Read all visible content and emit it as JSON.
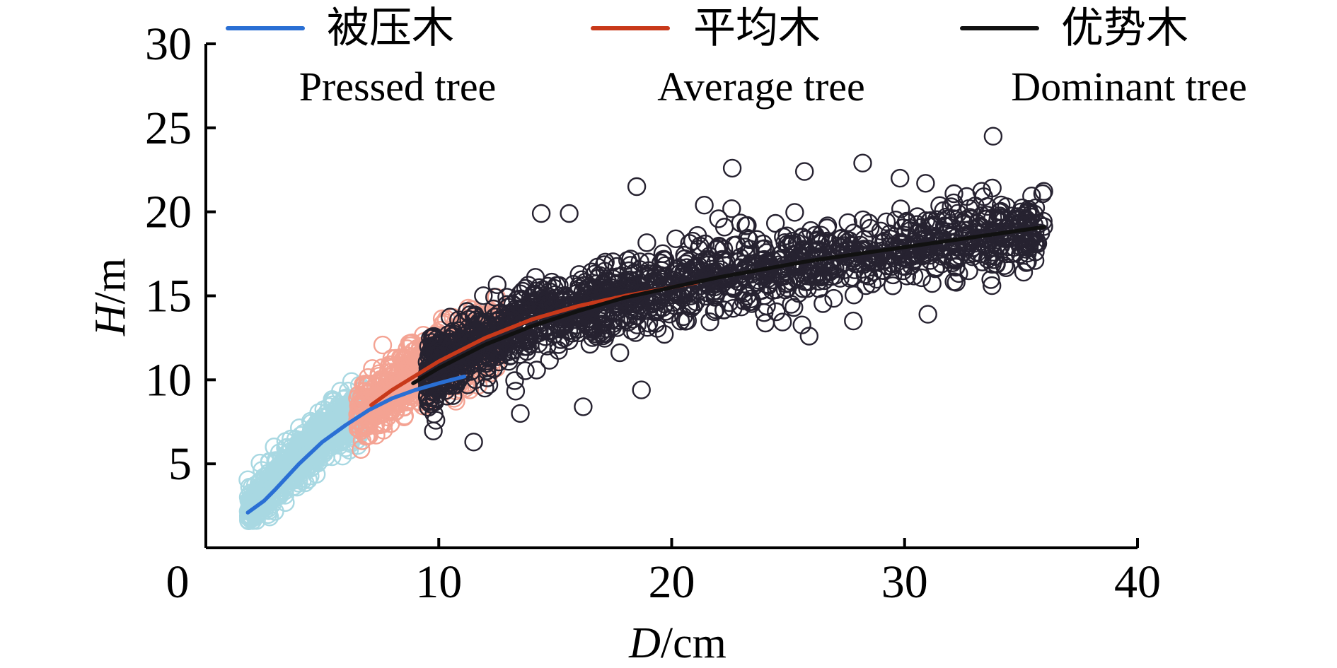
{
  "chart_data": {
    "type": "scatter",
    "title": "",
    "xlabel": {
      "italic": "D",
      "unit": "/cm"
    },
    "ylabel": {
      "italic": "H",
      "unit": "/m"
    },
    "xlim": [
      0,
      40
    ],
    "ylim": [
      0,
      30
    ],
    "xticks": [
      0,
      10,
      20,
      30,
      40
    ],
    "yticks": [
      5,
      10,
      15,
      20,
      25,
      30
    ],
    "grid": false,
    "legend_position": "top",
    "series": [
      {
        "name": "被压木",
        "name_en": "Pressed tree",
        "point_color": "#a8d8e2",
        "line_color": "#2a6fd4",
        "point_style": "open-circle",
        "points": {
          "x_range": [
            1.8,
            6.8
          ],
          "y_center_at_x": [
            [
              1.8,
              2.1
            ],
            [
              3,
              3.8
            ],
            [
              4,
              5.3
            ],
            [
              5,
              6.8
            ],
            [
              6,
              7.6
            ],
            [
              6.8,
              8.1
            ]
          ],
          "y_spread": 1.3,
          "count": 700
        },
        "curve": [
          [
            1.8,
            2.1
          ],
          [
            2.5,
            2.8
          ],
          [
            3,
            3.5
          ],
          [
            4,
            5.0
          ],
          [
            5,
            6.3
          ],
          [
            6,
            7.3
          ],
          [
            7,
            8.2
          ],
          [
            8,
            8.9
          ],
          [
            9,
            9.4
          ],
          [
            10,
            9.8
          ],
          [
            11.1,
            10.2
          ]
        ]
      },
      {
        "name": "平均木",
        "name_en": "Average tree",
        "point_color": "#f4a393",
        "line_color": "#c8391a",
        "point_style": "open-circle",
        "points": {
          "x_range": [
            6.5,
            12.5
          ],
          "y_center_at_x": [
            [
              6.5,
              8.0
            ],
            [
              8,
              9.3
            ],
            [
              10,
              11.0
            ],
            [
              12,
              12.5
            ],
            [
              12.5,
              12.8
            ]
          ],
          "y_spread": 1.8,
          "count": 700
        },
        "curve": [
          [
            7.1,
            8.5
          ],
          [
            8,
            9.4
          ],
          [
            10,
            11.1
          ],
          [
            12,
            12.5
          ],
          [
            14,
            13.6
          ],
          [
            16,
            14.4
          ],
          [
            18,
            15.0
          ],
          [
            20,
            15.5
          ],
          [
            21.1,
            15.8
          ]
        ]
      },
      {
        "name": "优势木",
        "name_en": "Dominant tree",
        "point_color": "#262230",
        "line_color": "#111111",
        "point_style": "open-circle",
        "points": {
          "x_range": [
            9.5,
            36
          ],
          "y_center_at_x": [
            [
              9.5,
              10.4
            ],
            [
              12,
              12.4
            ],
            [
              15,
              13.9
            ],
            [
              18,
              15.0
            ],
            [
              21,
              15.9
            ],
            [
              24,
              16.6
            ],
            [
              27,
              17.2
            ],
            [
              30,
              17.8
            ],
            [
              33,
              18.4
            ],
            [
              36,
              18.9
            ]
          ],
          "y_spread": 2.0,
          "count": 1500
        },
        "outliers": [
          [
            33.8,
            24.5
          ],
          [
            22.6,
            22.6
          ],
          [
            28.2,
            22.9
          ],
          [
            29.8,
            22.0
          ],
          [
            30.9,
            21.7
          ],
          [
            25.7,
            22.4
          ],
          [
            33.4,
            20.9
          ],
          [
            32,
            20.3
          ],
          [
            34.5,
            19.2
          ],
          [
            35.6,
            17.1
          ],
          [
            33.8,
            17.6
          ],
          [
            31,
            13.9
          ],
          [
            32.2,
            16.7
          ],
          [
            27.8,
            13.5
          ],
          [
            25.9,
            12.6
          ],
          [
            18.7,
            9.4
          ],
          [
            16.2,
            8.4
          ],
          [
            11.5,
            6.3
          ],
          [
            18.5,
            21.5
          ],
          [
            14.4,
            19.9
          ],
          [
            15.6,
            19.9
          ],
          [
            21.4,
            20.4
          ],
          [
            29.1,
            16.5
          ],
          [
            13.5,
            8.0
          ]
        ],
        "curve": [
          [
            8.9,
            9.8
          ],
          [
            10,
            10.7
          ],
          [
            12,
            12.1
          ],
          [
            14,
            13.2
          ],
          [
            16,
            14.1
          ],
          [
            18,
            14.9
          ],
          [
            20,
            15.5
          ],
          [
            22,
            16.1
          ],
          [
            24,
            16.6
          ],
          [
            26,
            17.1
          ],
          [
            28,
            17.5
          ],
          [
            30,
            17.9
          ],
          [
            32,
            18.3
          ],
          [
            34,
            18.7
          ],
          [
            36,
            19.1
          ]
        ]
      }
    ]
  }
}
